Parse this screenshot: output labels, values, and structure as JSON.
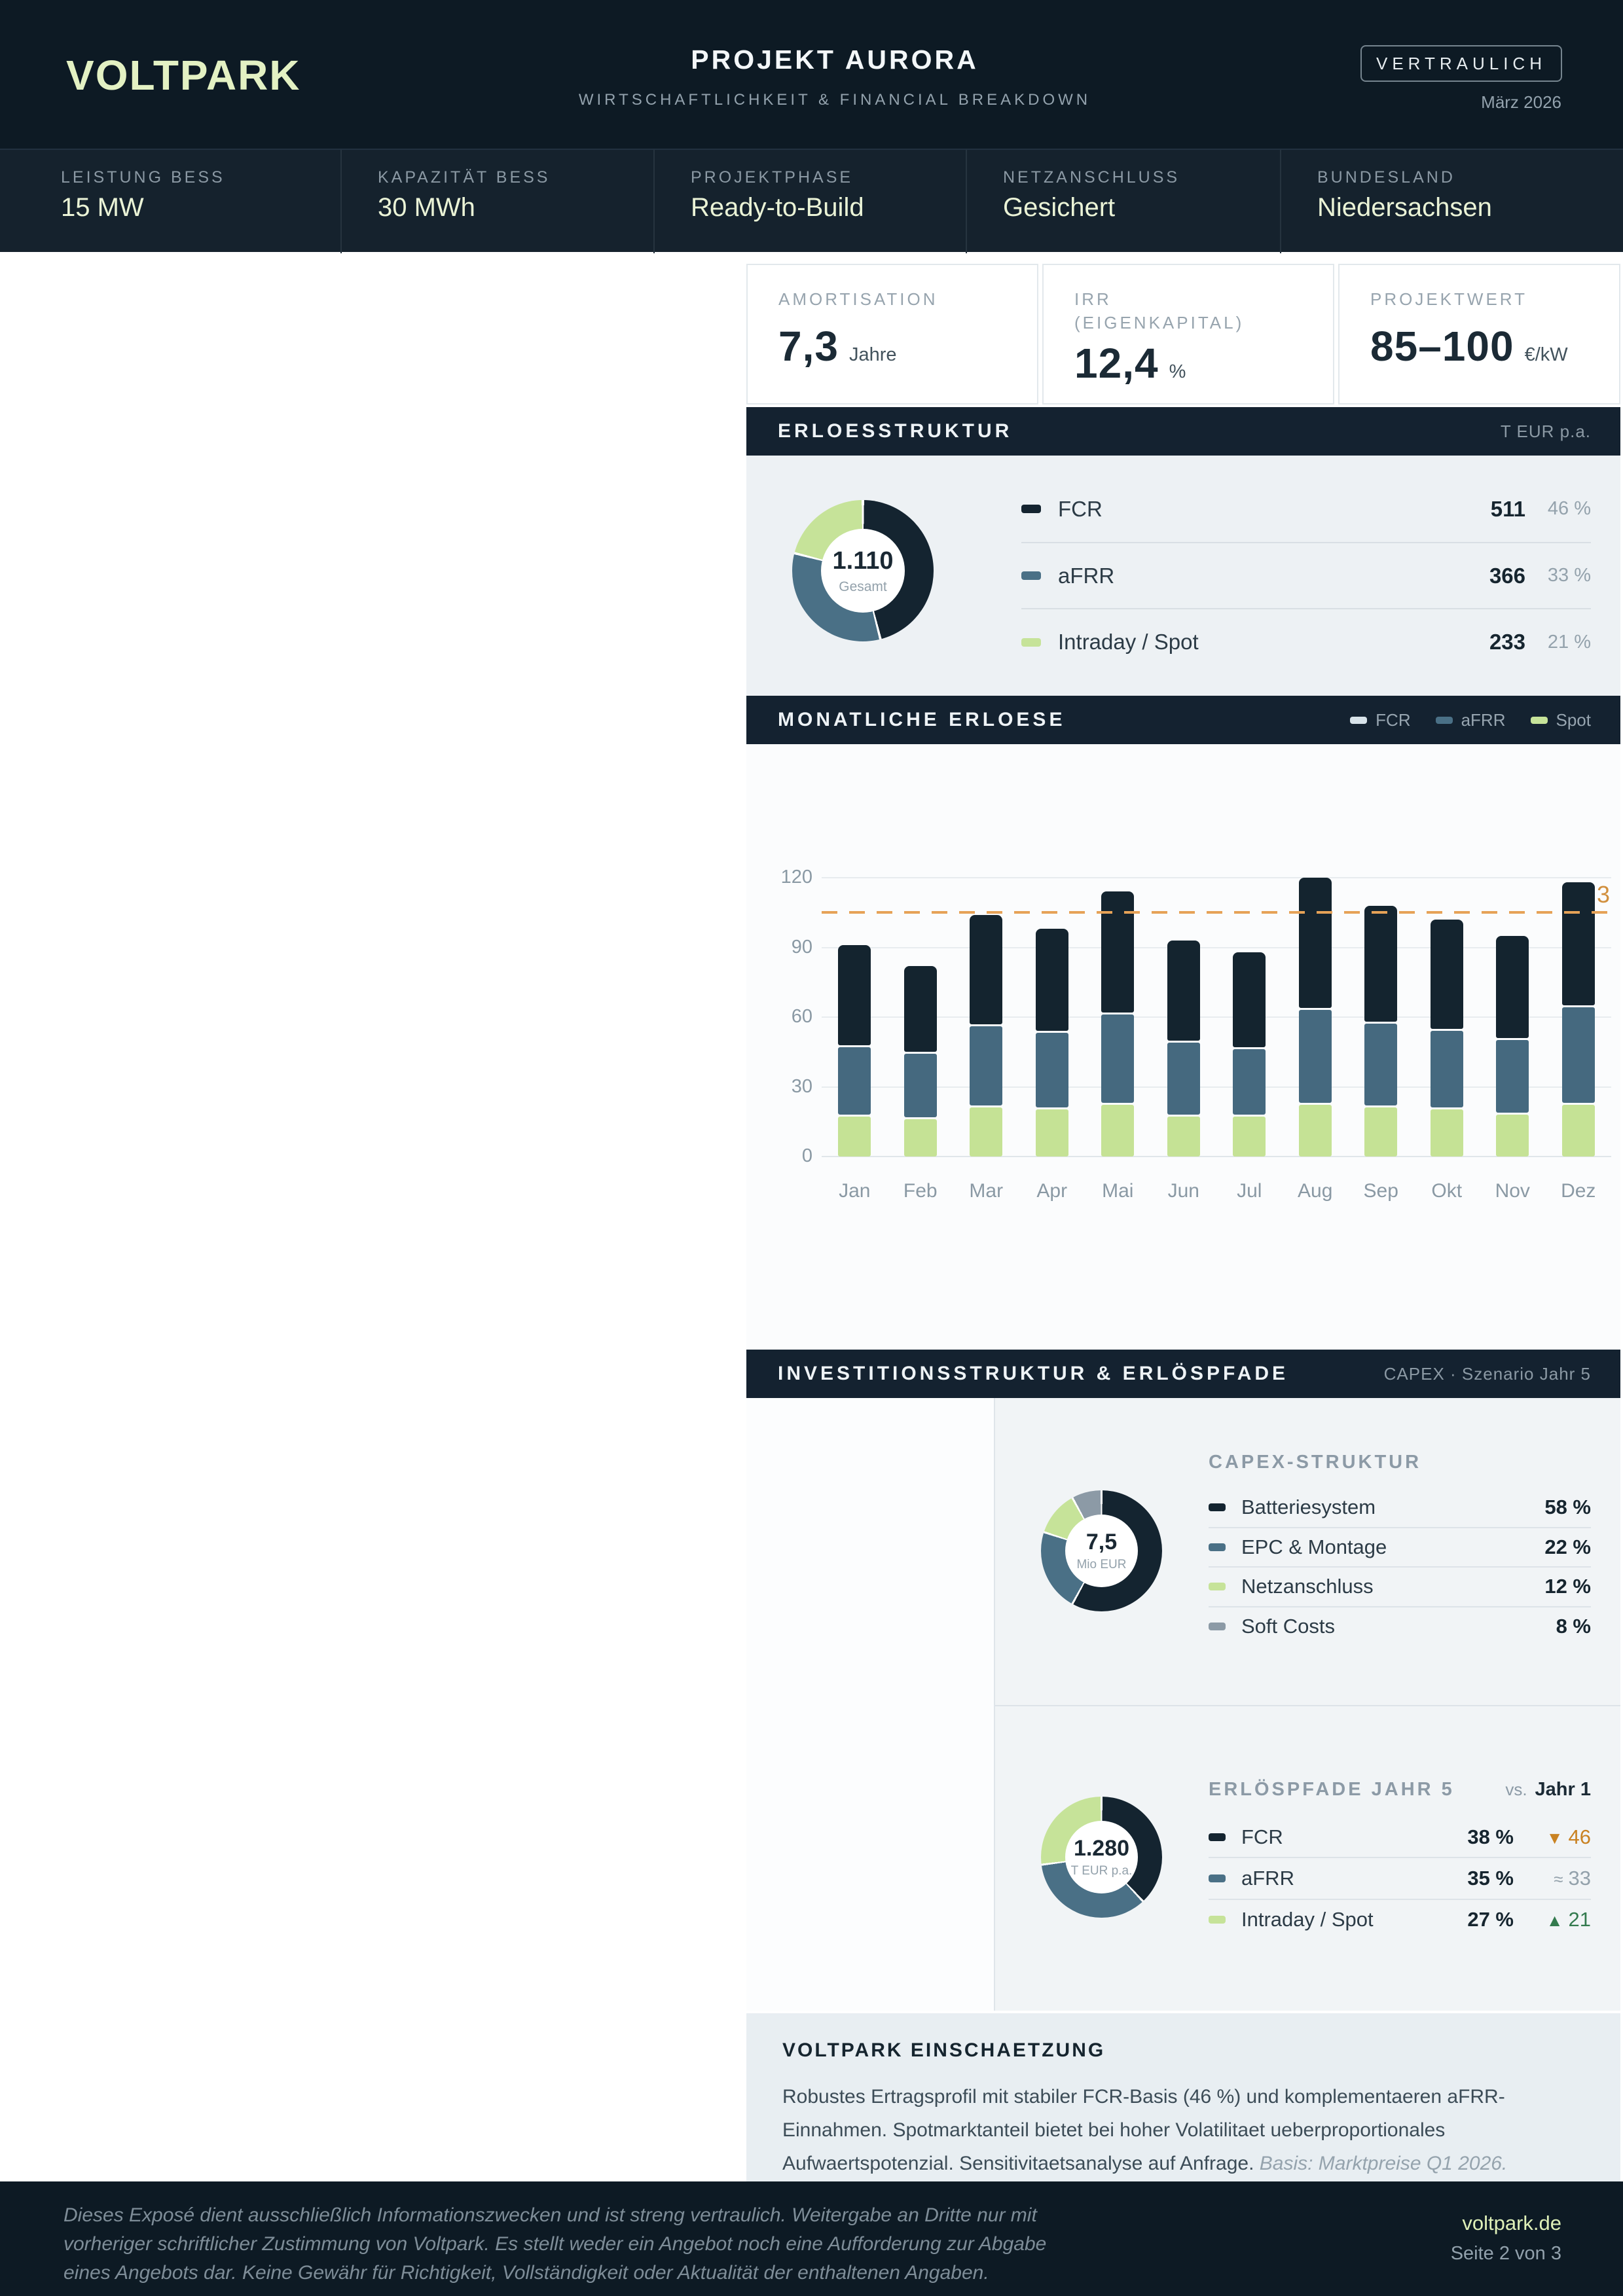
{
  "header": {
    "logo": "VOLTPARK",
    "title": "PROJEKT AURORA",
    "subtitle": "WIRTSCHAFTLICHKEIT & FINANCIAL BREAKDOWN",
    "badge": "VERTRAULICH",
    "date": "März 2026"
  },
  "stats": {
    "items": [
      {
        "label": "LEISTUNG BESS",
        "value": "15 MW"
      },
      {
        "label": "KAPAZITÄT BESS",
        "value": "30 MWh"
      },
      {
        "label": "PROJEKTPHASE",
        "value": "Ready-to-Build"
      },
      {
        "label": "NETZANSCHLUSS",
        "value": "Gesichert"
      },
      {
        "label": "BUNDESLAND",
        "value": "Niedersachsen"
      }
    ]
  },
  "kpis": {
    "items": [
      {
        "label_line1": "AMORTISATION",
        "label_line2": "",
        "value": "7,3",
        "unit": "Jahre"
      },
      {
        "label_line1": "IRR",
        "label_line2": "(EIGENKAPITAL)",
        "value": "12,4",
        "unit": "%"
      },
      {
        "label_line1": "PROJEKTWERT",
        "label_line2": "",
        "value": "85–100",
        "unit": "€/kW"
      }
    ]
  },
  "erloesstruktur": {
    "title": "ERLOESSTRUKTUR",
    "unit_label": "T EUR p.a.",
    "center_value": "1.110",
    "center_label": "Gesamt",
    "rows": [
      {
        "label": "FCR",
        "value": "511",
        "pct": "46 %"
      },
      {
        "label": "aFRR",
        "value": "366",
        "pct": "33 %"
      },
      {
        "label": "Intraday / Spot",
        "value": "233",
        "pct": "21 %"
      }
    ]
  },
  "monatliche": {
    "title": "MONATLICHE ERLOESE",
    "legend": [
      {
        "label": "FCR"
      },
      {
        "label": "aFRR"
      },
      {
        "label": "Spot"
      }
    ],
    "ref_label": "3"
  },
  "invest": {
    "title": "INVESTITIONSSTRUKTUR & ERLÖSPFADE",
    "subtitle": "CAPEX · Szenario Jahr 5",
    "capex": {
      "title": "CAPEX-STRUKTUR",
      "center_value": "7,5",
      "center_label": "Mio EUR",
      "rows": [
        {
          "label": "Batteriesystem",
          "pct": "58 %"
        },
        {
          "label": "EPC & Montage",
          "pct": "22 %"
        },
        {
          "label": "Netzanschluss",
          "pct": "12 %"
        },
        {
          "label": "Soft Costs",
          "pct": "8 %"
        }
      ]
    },
    "pfade": {
      "title": "ERLÖSPFADE JAHR 5",
      "vs_label": "vs.",
      "vs_value": "Jahr 1",
      "center_value": "1.280",
      "center_label": "T EUR p.a.",
      "rows": [
        {
          "label": "FCR",
          "pct": "38 %",
          "arrow": "▼",
          "delta": "46",
          "dir": "down"
        },
        {
          "label": "aFRR",
          "pct": "35 %",
          "arrow": "≈",
          "delta": "33",
          "dir": "flat"
        },
        {
          "label": "Intraday / Spot",
          "pct": "27 %",
          "arrow": "▲",
          "delta": "21",
          "dir": "up"
        }
      ]
    }
  },
  "einschaetzung": {
    "title": "VOLTPARK EINSCHAETZUNG",
    "text": "Robustes Ertragsprofil mit stabiler FCR-Basis (46 %) und komplementaeren aFRR-Einnahmen. Spotmarktanteil bietet bei hoher Volatilitaet ueberproportionales Aufwaertspotenzial. Sensitivitaetsanalyse auf Anfrage. ",
    "note": "Basis: Marktpreise Q1 2026."
  },
  "footer": {
    "lines": [
      "Dieses Exposé dient ausschließlich Informationszwecken und ist streng vertraulich. Weitergabe an Dritte nur mit",
      "vorheriger schriftlicher Zustimmung von Voltpark. Es stellt weder ein Angebot noch eine Aufforderung zur Abgabe",
      "eines Angebots dar. Keine Gewähr für Richtigkeit, Vollständigkeit oder Aktualität der enthaltenen Angaben."
    ],
    "site": "voltpark.de",
    "page": "Seite 2 von 3"
  },
  "colors": {
    "dark_navy": "#142430",
    "slate_blue": "#4a7086",
    "light_green": "#c6e399",
    "soft_gray": "#8c9aa6",
    "accent_green": "#e3f1c3",
    "orange": "#e6a257"
  },
  "chart_data": [
    {
      "id": "revenue-structure",
      "type": "pie",
      "title": "ERLOESSTRUKTUR",
      "unit": "T EUR p.a.",
      "total": 1110,
      "center_text": "1.110",
      "center_label": "Gesamt",
      "segments": [
        {
          "label": "FCR",
          "value": 511,
          "pct": 46,
          "color": "#142430"
        },
        {
          "label": "aFRR",
          "value": 366,
          "pct": 33,
          "color": "#4a7086"
        },
        {
          "label": "Intraday / Spot",
          "value": 233,
          "pct": 21,
          "color": "#c6e399"
        }
      ]
    },
    {
      "id": "monthly-revenue",
      "type": "bar",
      "subtype": "stacked",
      "title": "MONATLICHE ERLOESE",
      "categories": [
        "Jan",
        "Feb",
        "Mar",
        "Apr",
        "Mai",
        "Jun",
        "Jul",
        "Aug",
        "Sep",
        "Okt",
        "Nov",
        "Dez"
      ],
      "stack_order": "bottom_to_top",
      "series": [
        {
          "name": "Spot",
          "color": "#c5e295",
          "values": [
            18,
            17,
            22,
            21,
            23,
            18,
            18,
            23,
            22,
            21,
            19,
            23
          ]
        },
        {
          "name": "aFRR",
          "color": "#45697f",
          "values": [
            30,
            28,
            35,
            33,
            39,
            32,
            29,
            41,
            36,
            34,
            32,
            42
          ]
        },
        {
          "name": "FCR",
          "color": "#14242f",
          "values": [
            43,
            37,
            47,
            44,
            52,
            43,
            41,
            56,
            50,
            47,
            44,
            53
          ]
        }
      ],
      "ylim": [
        0,
        120
      ],
      "yticks": [
        0,
        30,
        60,
        90,
        120
      ],
      "grid": true,
      "legend_position": "top-right",
      "reference_line": {
        "value": 105,
        "visible_label": "3",
        "color": "#e6a257",
        "style": "dashed"
      }
    },
    {
      "id": "capex-structure",
      "type": "pie",
      "title": "CAPEX-STRUKTUR",
      "center_text": "7,5",
      "center_label": "Mio EUR",
      "segments": [
        {
          "label": "Batteriesystem",
          "pct": 58,
          "color": "#142430"
        },
        {
          "label": "EPC & Montage",
          "pct": 22,
          "color": "#4a7086"
        },
        {
          "label": "Netzanschluss",
          "pct": 12,
          "color": "#c6e399"
        },
        {
          "label": "Soft Costs",
          "pct": 8,
          "color": "#8c9aa6"
        }
      ]
    },
    {
      "id": "erloespfade-jahr5",
      "type": "pie",
      "title": "ERLÖSPFADE JAHR 5",
      "center_text": "1.280",
      "center_label": "T EUR p.a.",
      "segments": [
        {
          "label": "FCR",
          "pct": 38,
          "color": "#142430"
        },
        {
          "label": "aFRR",
          "pct": 35,
          "color": "#4a7086"
        },
        {
          "label": "Intraday / Spot",
          "pct": 27,
          "color": "#c6e399"
        }
      ]
    }
  ]
}
